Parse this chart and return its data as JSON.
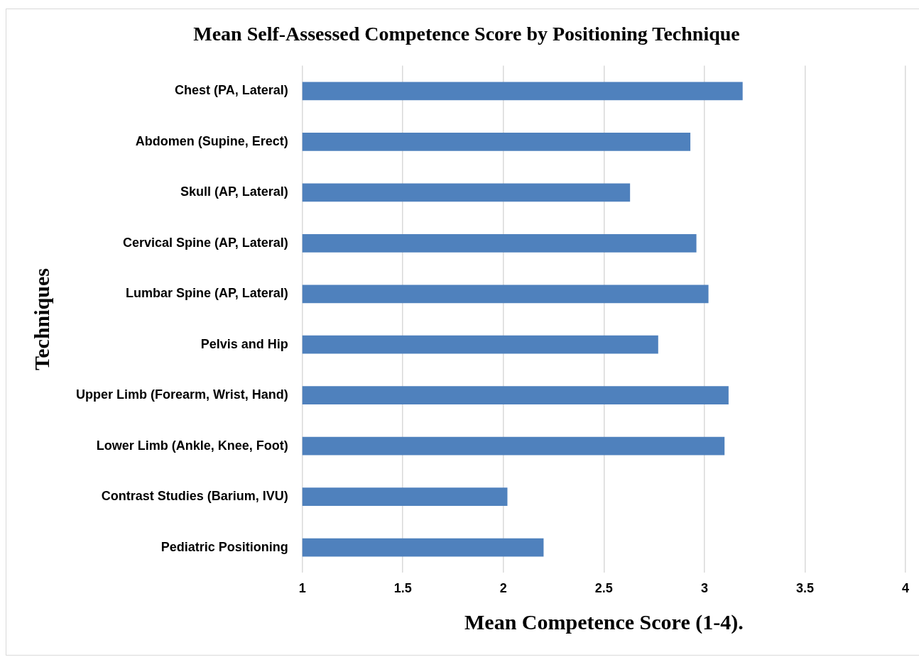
{
  "chart_data": {
    "type": "bar",
    "orientation": "horizontal",
    "title": "Mean Self-Assessed Competence Score by Positioning Technique",
    "xlabel": "Mean Competence Score (1-4).",
    "ylabel": "Techniques",
    "categories": [
      "Chest (PA, Lateral)",
      "Abdomen (Supine, Erect)",
      "Skull (AP, Lateral)",
      "Cervical Spine (AP, Lateral)",
      "Lumbar Spine (AP, Lateral)",
      "Pelvis and Hip",
      "Upper Limb (Forearm, Wrist, Hand)",
      "Lower Limb (Ankle, Knee, Foot)",
      "Contrast Studies (Barium, IVU)",
      "Pediatric Positioning"
    ],
    "values": [
      3.19,
      2.93,
      2.63,
      2.96,
      3.02,
      2.77,
      3.12,
      3.1,
      2.02,
      2.2
    ],
    "color": "#4f81bd",
    "xlim": [
      1,
      4
    ],
    "xticks": [
      1,
      1.5,
      2,
      2.5,
      3,
      3.5,
      4
    ],
    "grid": "x",
    "legend": false
  }
}
